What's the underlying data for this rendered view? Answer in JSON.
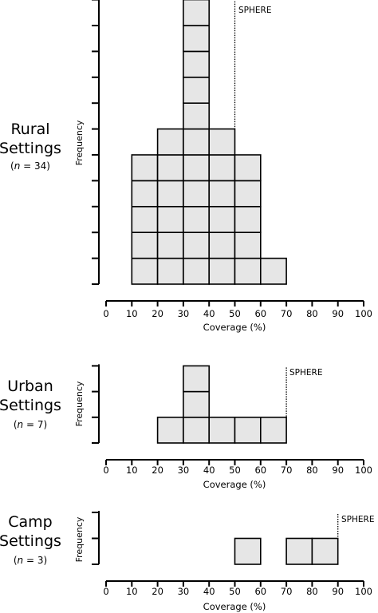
{
  "chart_data": [
    {
      "type": "bar",
      "subtype": "stacked-unit-histogram",
      "title_lines": [
        "Rural",
        "Settings"
      ],
      "n_prefix": "(",
      "n_symbol": "n",
      "n_suffix": " = 34)",
      "xlabel": "Coverage (%)",
      "ylabel": "Frequency",
      "xlim": [
        0,
        100
      ],
      "ylim": [
        0,
        11
      ],
      "xticks": [
        "0",
        "10",
        "20",
        "30",
        "40",
        "50",
        "60",
        "70",
        "80",
        "90",
        "100"
      ],
      "bins": [
        [
          10,
          20
        ],
        [
          20,
          30
        ],
        [
          30,
          40
        ],
        [
          40,
          50
        ],
        [
          50,
          60
        ],
        [
          60,
          70
        ]
      ],
      "counts": [
        5,
        6,
        11,
        6,
        5,
        1
      ],
      "reference_line": {
        "label": "SPHERE",
        "x": 50
      },
      "grid": false,
      "legend": "none"
    },
    {
      "type": "bar",
      "subtype": "stacked-unit-histogram",
      "title_lines": [
        "Urban",
        "Settings"
      ],
      "n_prefix": "(",
      "n_symbol": "n",
      "n_suffix": " = 7)",
      "xlabel": "Coverage (%)",
      "ylabel": "Frequency",
      "xlim": [
        0,
        100
      ],
      "ylim": [
        0,
        3
      ],
      "xticks": [
        "0",
        "10",
        "20",
        "30",
        "40",
        "50",
        "60",
        "70",
        "80",
        "90",
        "100"
      ],
      "bins": [
        [
          20,
          30
        ],
        [
          30,
          40
        ],
        [
          40,
          50
        ],
        [
          50,
          60
        ],
        [
          60,
          70
        ]
      ],
      "counts": [
        1,
        3,
        1,
        1,
        1
      ],
      "reference_line": {
        "label": "SPHERE",
        "x": 70
      },
      "grid": false,
      "legend": "none"
    },
    {
      "type": "bar",
      "subtype": "stacked-unit-histogram",
      "title_lines": [
        "Camp",
        "Settings"
      ],
      "n_prefix": "(",
      "n_symbol": "n",
      "n_suffix": " = 3)",
      "xlabel": "Coverage (%)",
      "ylabel": "Frequency",
      "xlim": [
        0,
        100
      ],
      "ylim": [
        0,
        2
      ],
      "xticks": [
        "0",
        "10",
        "20",
        "30",
        "40",
        "50",
        "60",
        "70",
        "80",
        "90",
        "100"
      ],
      "bins": [
        [
          50,
          60
        ],
        [
          70,
          80
        ],
        [
          80,
          90
        ]
      ],
      "counts": [
        1,
        1,
        1
      ],
      "reference_line": {
        "label": "SPHERE",
        "x": 90
      },
      "grid": false,
      "legend": "none"
    }
  ],
  "colors": {
    "bar_fill": "#e6e6e6",
    "bar_stroke": "#000000",
    "axis": "#000000",
    "background": "#ffffff"
  }
}
